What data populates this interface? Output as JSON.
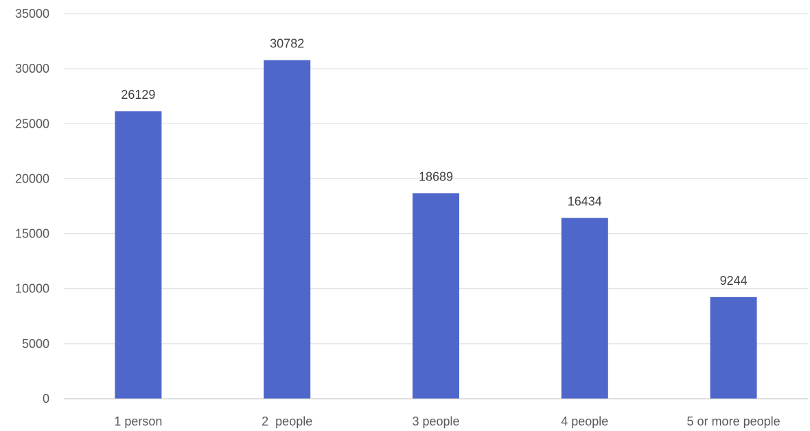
{
  "chart_data": {
    "type": "bar",
    "title": "",
    "xlabel": "",
    "ylabel": "",
    "categories": [
      "1 person",
      "2  people",
      "3 people",
      "4 people",
      "5 or more people"
    ],
    "values": [
      26129,
      30782,
      18689,
      16434,
      9244
    ],
    "data_labels": [
      "26129",
      "30782",
      "18689",
      "16434",
      "9244"
    ],
    "ylim": [
      0,
      35000
    ],
    "yticks": [
      0,
      5000,
      10000,
      15000,
      20000,
      25000,
      30000,
      35000
    ],
    "ytick_labels": [
      "0",
      "5000",
      "10000",
      "15000",
      "20000",
      "25000",
      "30000",
      "35000"
    ],
    "grid": true,
    "legend": "none",
    "bar_color": "#4F67CB"
  }
}
